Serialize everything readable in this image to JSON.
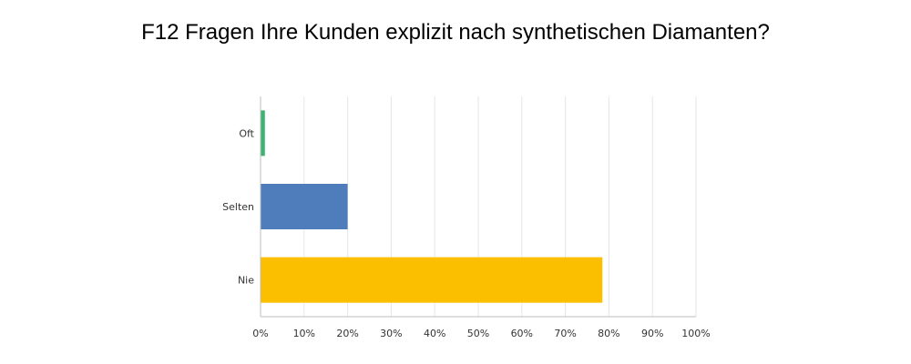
{
  "chart_data": {
    "type": "bar",
    "orientation": "horizontal",
    "title": "F12 Fragen Ihre Kunden explizit nach synthetischen Diamanten?",
    "categories": [
      "Oft",
      "Selten",
      "Nie"
    ],
    "values": [
      1.0,
      20.0,
      78.5
    ],
    "colors": [
      "#3cb371",
      "#4f7cba",
      "#fbbf00"
    ],
    "xlim": [
      0,
      100
    ],
    "xticks": [
      "0%",
      "10%",
      "20%",
      "30%",
      "40%",
      "50%",
      "60%",
      "70%",
      "80%",
      "90%",
      "100%"
    ],
    "xlabel": "",
    "ylabel": "",
    "grid": true,
    "legend": "none"
  }
}
